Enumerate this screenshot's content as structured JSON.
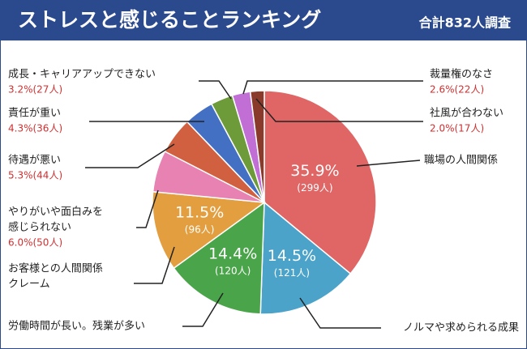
{
  "chart_data": {
    "type": "pie",
    "title": "ストレスと感じることランキング",
    "subtitle": "合計832人調査",
    "categories": [
      [
        "職場の人間関係"
      ],
      [
        "ノルマや求められる成果"
      ],
      [
        "労働時間が長い。残業が多い"
      ],
      [
        "お客様との人間関係",
        "クレーム"
      ],
      [
        "やりがいや面白みを",
        "感じられない"
      ],
      [
        "待遇が悪い"
      ],
      [
        "責任が重い"
      ],
      [
        "成長・キャリアアップできない"
      ],
      [
        "裁量権のなさ"
      ],
      [
        "社風が合わない"
      ]
    ],
    "values": [
      35.9,
      14.5,
      14.4,
      11.5,
      6.0,
      5.3,
      4.3,
      3.2,
      2.6,
      2.0
    ],
    "value_labels": [
      [
        "35.9%",
        "(299人)"
      ],
      [
        "14.5%",
        "(121人)"
      ],
      [
        "14.4%",
        "(120人)"
      ],
      [
        "11.5%",
        "(96人)"
      ],
      [
        "6.0%(50人)"
      ],
      [
        "5.3%(44人)"
      ],
      [
        "4.3%(36人)"
      ],
      [
        "3.2%(27人)"
      ],
      [
        "2.6%(22人)"
      ],
      [
        "2.0%(17人)"
      ]
    ],
    "colors": [
      "#e06666",
      "#4ba3c9",
      "#4aa54a",
      "#e39f3f",
      "#e882b2",
      "#d0603f",
      "#4470c4",
      "#6d9b3a",
      "#c16fd4",
      "#8a3a2a"
    ]
  }
}
